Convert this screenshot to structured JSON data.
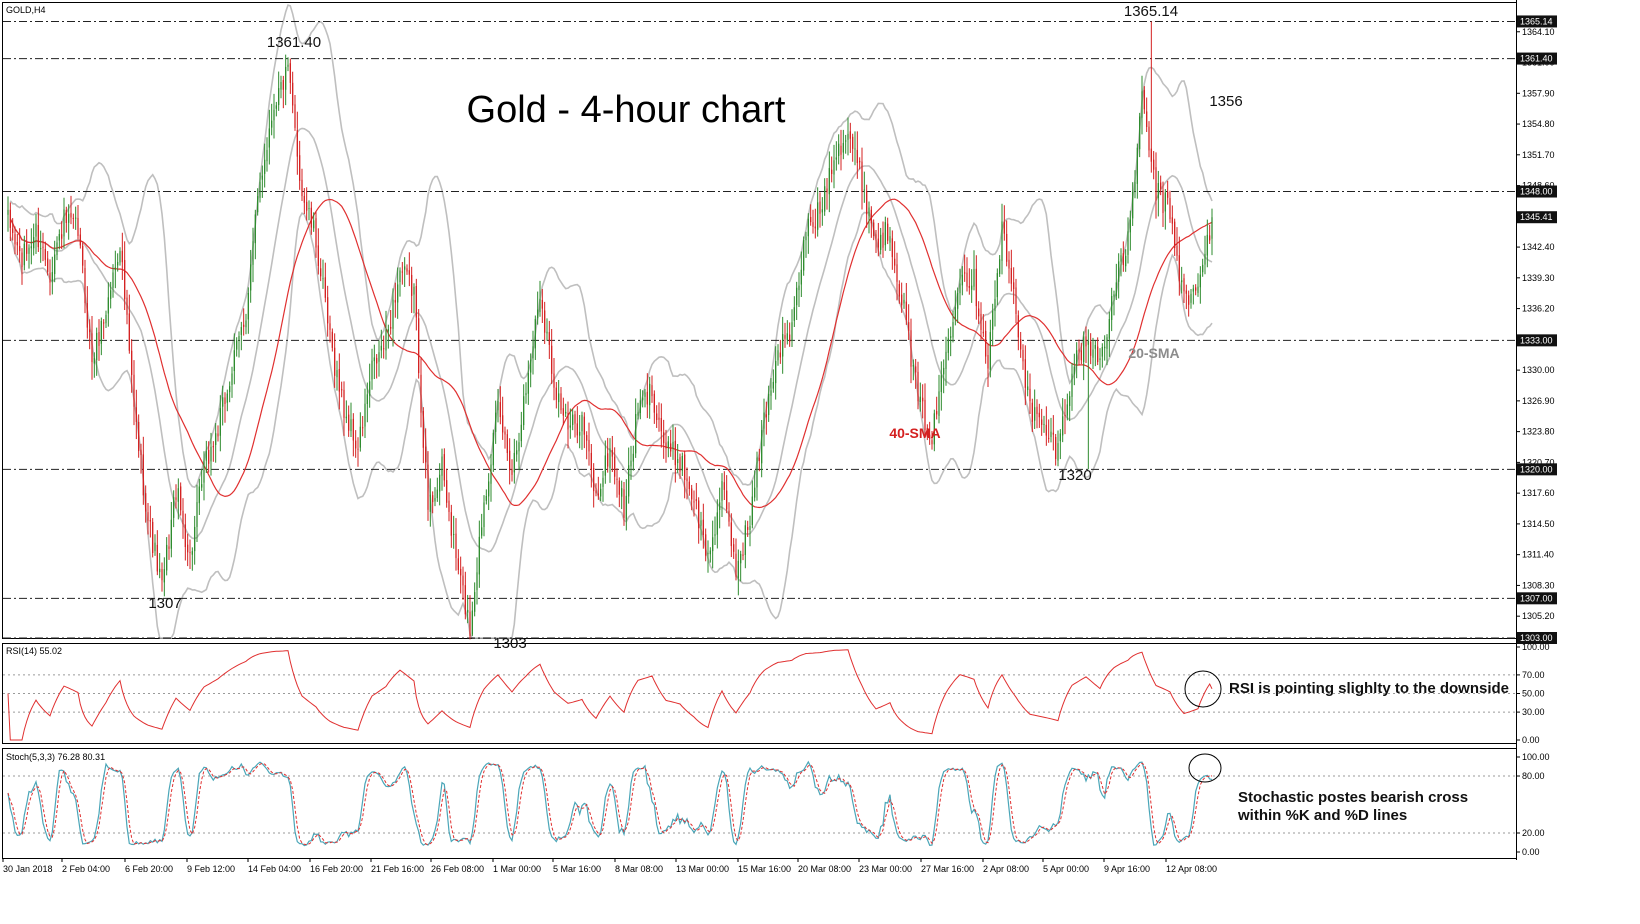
{
  "colors": {
    "bull": "#2e8b2e",
    "bear": "#d42020",
    "sma40": "#e03030",
    "band": "#bfbfbf",
    "rsi": "#e03030",
    "stoch_k": "#4aa6b8",
    "stoch_d": "#e03030",
    "level_line": "#222222",
    "tag_bg": "#111111",
    "tag_text": "#ffffff",
    "label_sma20": "#8c8c8c",
    "label_sma40": "#d42020"
  },
  "chart_data": [
    {
      "type": "candlestick",
      "symbol_tag": "GOLD,H4",
      "title": "Gold - 4-hour chart",
      "ylim": [
        1303.0,
        1367.0
      ],
      "y_ticks": [
        1364.1,
        1361.0,
        1357.9,
        1354.8,
        1351.7,
        1348.6,
        1345.5,
        1342.4,
        1339.3,
        1336.2,
        1333.1,
        1330.0,
        1326.9,
        1323.8,
        1320.7,
        1317.6,
        1314.5,
        1311.4,
        1308.3,
        1305.2
      ],
      "y_tick_labels": [
        "1364.10",
        "1361.00",
        "1357.90",
        "1354.80",
        "1351.70",
        "1348.60",
        "1345.50",
        "1342.40",
        "1339.30",
        "1336.20",
        "1333.10",
        "1330.00",
        "1326.90",
        "1323.80",
        "1320.70",
        "1317.60",
        "1314.50",
        "1311.40",
        "1308.30",
        "1305.20"
      ],
      "levels": [
        {
          "value": 1365.14,
          "tag": "1365.14"
        },
        {
          "value": 1361.4,
          "tag": "1361.40"
        },
        {
          "value": 1348.0,
          "tag": "1348.00"
        },
        {
          "value": 1333.0,
          "tag": "1333.00"
        },
        {
          "value": 1320.0,
          "tag": "1320.00"
        },
        {
          "value": 1307.0,
          "tag": "1307.00"
        },
        {
          "value": 1303.0,
          "tag": "1303.00"
        }
      ],
      "current_price": {
        "value": 1345.41,
        "tag": "1345.41"
      },
      "annotations": [
        {
          "text": "1361.40",
          "ref": "high-feb14"
        },
        {
          "text": "1365.14",
          "ref": "high-apr11"
        },
        {
          "text": "1356",
          "ref": "level-1356"
        },
        {
          "text": "1307",
          "ref": "low-feb8"
        },
        {
          "text": "1303",
          "ref": "low-mar1"
        },
        {
          "text": "1320",
          "ref": "low-apr5"
        },
        {
          "text": "20-SMA",
          "ref": "sma20"
        },
        {
          "text": "40-SMA",
          "ref": "sma40"
        }
      ],
      "waypoints": [
        [
          0,
          1345
        ],
        [
          6,
          1341
        ],
        [
          12,
          1344
        ],
        [
          18,
          1340
        ],
        [
          24,
          1345
        ],
        [
          30,
          1344
        ],
        [
          36,
          1331
        ],
        [
          42,
          1336
        ],
        [
          48,
          1343
        ],
        [
          54,
          1326
        ],
        [
          60,
          1315
        ],
        [
          66,
          1308
        ],
        [
          72,
          1318
        ],
        [
          78,
          1311
        ],
        [
          84,
          1320
        ],
        [
          90,
          1324
        ],
        [
          96,
          1330
        ],
        [
          102,
          1336
        ],
        [
          108,
          1349
        ],
        [
          114,
          1357
        ],
        [
          120,
          1360
        ],
        [
          126,
          1348
        ],
        [
          132,
          1343
        ],
        [
          138,
          1333
        ],
        [
          144,
          1326
        ],
        [
          150,
          1322
        ],
        [
          156,
          1330
        ],
        [
          162,
          1333
        ],
        [
          168,
          1340
        ],
        [
          174,
          1338
        ],
        [
          180,
          1316
        ],
        [
          186,
          1320
        ],
        [
          192,
          1311
        ],
        [
          198,
          1304
        ],
        [
          204,
          1317
        ],
        [
          210,
          1326
        ],
        [
          216,
          1320
        ],
        [
          222,
          1328
        ],
        [
          228,
          1338
        ],
        [
          234,
          1329
        ],
        [
          240,
          1324
        ],
        [
          246,
          1325
        ],
        [
          252,
          1317
        ],
        [
          258,
          1322
        ],
        [
          264,
          1316
        ],
        [
          270,
          1326
        ],
        [
          276,
          1328
        ],
        [
          282,
          1322
        ],
        [
          288,
          1321
        ],
        [
          294,
          1317
        ],
        [
          300,
          1311
        ],
        [
          306,
          1318
        ],
        [
          312,
          1310
        ],
        [
          318,
          1315
        ],
        [
          324,
          1325
        ],
        [
          330,
          1332
        ],
        [
          336,
          1334
        ],
        [
          342,
          1344
        ],
        [
          348,
          1346
        ],
        [
          354,
          1352
        ],
        [
          360,
          1354
        ],
        [
          366,
          1349
        ],
        [
          372,
          1343
        ],
        [
          378,
          1344
        ],
        [
          384,
          1336
        ],
        [
          390,
          1327
        ],
        [
          396,
          1323
        ],
        [
          402,
          1332
        ],
        [
          408,
          1340
        ],
        [
          414,
          1339
        ],
        [
          420,
          1331
        ],
        [
          426,
          1344
        ],
        [
          432,
          1336
        ],
        [
          438,
          1326
        ],
        [
          444,
          1324
        ],
        [
          450,
          1322
        ],
        [
          456,
          1330
        ],
        [
          462,
          1333
        ],
        [
          468,
          1331
        ],
        [
          474,
          1338
        ],
        [
          480,
          1343
        ],
        [
          486,
          1357
        ],
        [
          492,
          1348
        ],
        [
          498,
          1346
        ],
        [
          504,
          1337
        ],
        [
          510,
          1338
        ],
        [
          516,
          1345.41
        ]
      ],
      "x_tick_labels": [
        "30 Jan 2018",
        "2 Feb 04:00",
        "6 Feb 20:00",
        "9 Feb 12:00",
        "14 Feb 04:00",
        "16 Feb 20:00",
        "21 Feb 16:00",
        "26 Feb 08:00",
        "1 Mar 00:00",
        "5 Mar 16:00",
        "8 Mar 08:00",
        "13 Mar 00:00",
        "15 Mar 16:00",
        "20 Mar 08:00",
        "23 Mar 00:00",
        "27 Mar 16:00",
        "2 Apr 08:00",
        "5 Apr 00:00",
        "9 Apr 16:00",
        "12 Apr 08:00"
      ]
    },
    {
      "type": "line",
      "name": "RSI(14) 55.02",
      "ylim": [
        0,
        100
      ],
      "y_ticks": [
        100.0,
        70.0,
        50.0,
        30.0,
        0.0
      ],
      "y_tick_labels": [
        "100.00",
        "70.00",
        "50.00",
        "30.00",
        "0.00"
      ],
      "guide_levels": [
        70,
        50,
        30
      ],
      "last_value": 55.02
    },
    {
      "type": "line",
      "name": "Stoch(5,3,3) 76.28 80.31",
      "ylim": [
        0,
        100
      ],
      "y_ticks": [
        100.0,
        80.0,
        20.0,
        0.0
      ],
      "y_tick_labels": [
        "100.00",
        "80.00",
        "20.00",
        "0.00"
      ],
      "guide_levels": [
        80,
        20
      ],
      "last_k": 76.28,
      "last_d": 80.31
    }
  ],
  "notes": {
    "rsi": "RSI is pointing slighlty to the downside",
    "stoch_line1": "Stochastic postes bearish cross",
    "stoch_line2": "within %K and %D lines"
  }
}
